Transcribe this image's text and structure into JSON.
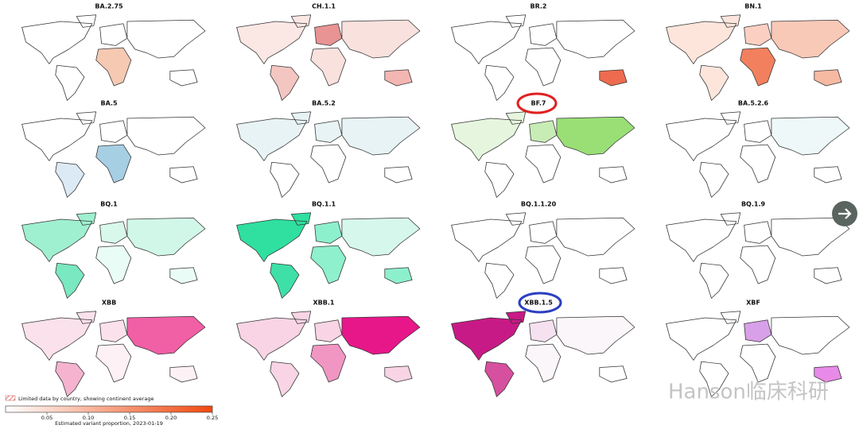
{
  "panels": [
    {
      "title": "BA.2.75",
      "fills": {
        "na": "#ffffff",
        "sa": "#ffffff",
        "eu": "#ffffff",
        "af": "#f6c9b3",
        "as": "#ffffff",
        "oc": "#ffffff"
      }
    },
    {
      "title": "CH.1.1",
      "fills": {
        "na": "#fbe7e4",
        "sa": "#f3c6c2",
        "eu": "#e89394",
        "af": "#f9e1de",
        "as": "#f9e1de",
        "oc": "#f4b6b2"
      }
    },
    {
      "title": "BR.2",
      "fills": {
        "na": "#ffffff",
        "sa": "#ffffff",
        "eu": "#ffffff",
        "af": "#ffffff",
        "as": "#ffffff",
        "oc": "#ef6b4f"
      }
    },
    {
      "title": "BN.1",
      "fills": {
        "na": "#fde5dc",
        "sa": "#fde5dc",
        "eu": "#fbd0c3",
        "af": "#f2805e",
        "as": "#f9c9b7",
        "oc": "#f7b9a2"
      }
    },
    {
      "title": "BA.5",
      "fills": {
        "na": "#ffffff",
        "sa": "#dbeaf4",
        "eu": "#ffffff",
        "af": "#a6cfe4",
        "as": "#ffffff",
        "oc": "#ffffff"
      }
    },
    {
      "title": "BA.5.2",
      "fills": {
        "na": "#e8f3f5",
        "sa": "#ffffff",
        "eu": "#e8f3f5",
        "af": "#ffffff",
        "as": "#e8f3f5",
        "oc": "#ffffff"
      }
    },
    {
      "title": "BF.7",
      "fills": {
        "na": "#e6f6de",
        "sa": "#ffffff",
        "eu": "#c8ecb6",
        "af": "#ffffff",
        "as": "#9adf76",
        "oc": "#ffffff"
      }
    },
    {
      "title": "BA.5.2.6",
      "fills": {
        "na": "#ffffff",
        "sa": "#ffffff",
        "eu": "#ffffff",
        "af": "#ffffff",
        "as": "#eef8f8",
        "oc": "#ffffff"
      }
    },
    {
      "title": "BQ.1",
      "fills": {
        "na": "#9ff0d0",
        "sa": "#7ae8c0",
        "eu": "#d9f8ec",
        "af": "#eafcf6",
        "as": "#d1f7e8",
        "oc": "#eafcf6"
      }
    },
    {
      "title": "BQ.1.1",
      "fills": {
        "na": "#2fe0a0",
        "sa": "#3fe0a8",
        "eu": "#8df0cc",
        "af": "#8ef0cc",
        "as": "#d6f8ec",
        "oc": "#8df0cc"
      }
    },
    {
      "title": "BQ.1.1.20",
      "fills": {
        "na": "#ffffff",
        "sa": "#ffffff",
        "eu": "#ffffff",
        "af": "#ffffff",
        "as": "#ffffff",
        "oc": "#ffffff"
      }
    },
    {
      "title": "BQ.1.9",
      "fills": {
        "na": "#ffffff",
        "sa": "#ffffff",
        "eu": "#ffffff",
        "af": "#ffffff",
        "as": "#ffffff",
        "oc": "#ffffff"
      }
    },
    {
      "title": "XBB",
      "fills": {
        "na": "#fbe1ec",
        "sa": "#f5b3d0",
        "eu": "#fbe1ec",
        "af": "#fdf1f6",
        "as": "#f15fa5",
        "oc": "#fdf1f6"
      }
    },
    {
      "title": "XBB.1",
      "fills": {
        "na": "#f8d4e4",
        "sa": "#f8d4e4",
        "eu": "#f8d4e4",
        "af": "#f196c3",
        "as": "#e7178a",
        "oc": "#f8d4e4"
      }
    },
    {
      "title": "XBB.1.5",
      "fills": {
        "na": "#c81a86",
        "sa": "#d74f9f",
        "eu": "#f5e1ef",
        "af": "#fbf6fa",
        "as": "#fbf6fa",
        "oc": "#ffffff"
      }
    },
    {
      "title": "XBF",
      "fills": {
        "na": "#ffffff",
        "sa": "#ffffff",
        "eu": "#d8a0e8",
        "af": "#ffffff",
        "as": "#ffffff",
        "oc": "#e88ae8"
      }
    }
  ],
  "legend": {
    "hatch_label": "Limited data by country, showing continent average"
  },
  "colorbar": {
    "lim": [
      0,
      0.25
    ],
    "ticks": [
      0.05,
      {
        "value": 0.1,
        "label": "0.10"
      },
      0.15,
      {
        "value": 0.2,
        "label": "0.20"
      },
      0.25
    ],
    "label": "Estimated variant proportion, 2023-01-19",
    "colors": [
      "#ffffff",
      "#f04a10"
    ]
  },
  "watermark": "Hanson临床科研"
}
